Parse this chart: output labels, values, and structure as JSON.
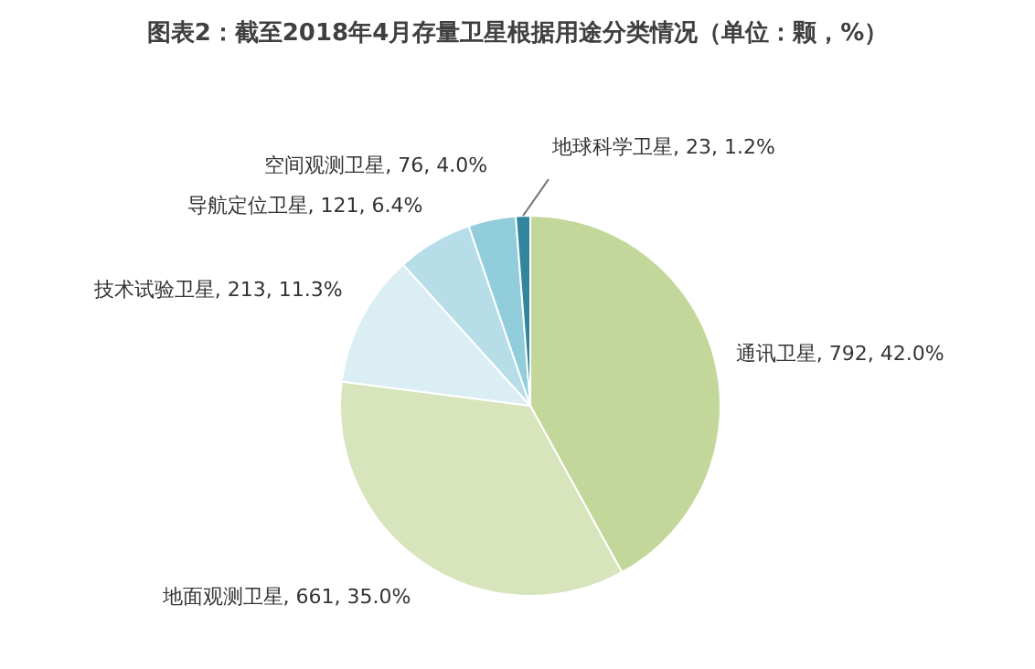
{
  "chart_data": {
    "type": "pie",
    "title": "图表2：截至2018年4月存量卫星根据用途分类情况（单位：颗，%）",
    "categories": [
      "通讯卫星",
      "地面观测卫星",
      "技术试验卫星",
      "导航定位卫星",
      "空间观测卫星",
      "地球科学卫星"
    ],
    "values": [
      792,
      661,
      213,
      121,
      76,
      23
    ],
    "colors": [
      "#c4d79b",
      "#d8e4bc",
      "#dbeef4",
      "#b7dee8",
      "#92cddc",
      "#31859c"
    ],
    "value_labels": [
      "792, 42.0%",
      "661, 35.0%",
      "213, 11.3%",
      "121, 6.4%",
      "76, 4.0%",
      "23, 1.2%"
    ]
  }
}
